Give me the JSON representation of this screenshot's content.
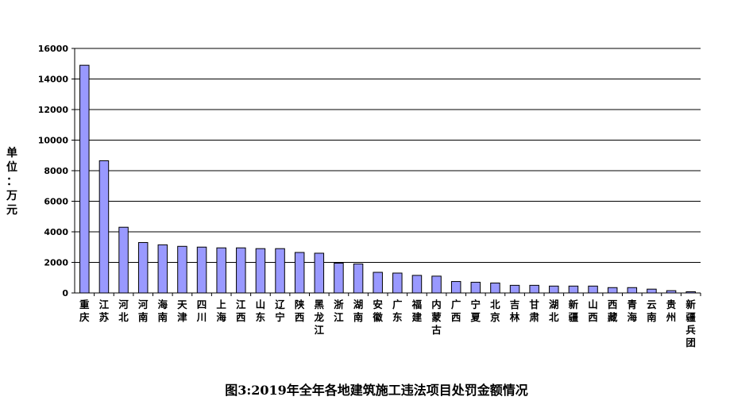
{
  "chart_data": {
    "type": "bar",
    "title": "图3:2019年全年各地建筑施工违法项目处罚金额情况",
    "xlabel": "",
    "ylabel": "单位：万元",
    "ylim": [
      0,
      16000
    ],
    "yticks": [
      0,
      2000,
      4000,
      6000,
      8000,
      10000,
      12000,
      14000,
      16000
    ],
    "grid": true,
    "bar_color": "#9999ff",
    "categories": [
      "重庆",
      "江苏",
      "河北",
      "河南",
      "海南",
      "天津",
      "四川",
      "上海",
      "江西",
      "山东",
      "辽宁",
      "陕西",
      "黑龙江",
      "浙江",
      "湖南",
      "安徽",
      "广东",
      "福建",
      "内蒙古",
      "广西",
      "宁夏",
      "北京",
      "吉林",
      "甘肃",
      "湖北",
      "新疆",
      "山西",
      "西藏",
      "青海",
      "云南",
      "贵州",
      "新疆兵团"
    ],
    "values": [
      14900,
      8650,
      4300,
      3300,
      3150,
      3050,
      3000,
      2950,
      2950,
      2900,
      2900,
      2650,
      2600,
      1950,
      1900,
      1350,
      1300,
      1150,
      1100,
      750,
      700,
      650,
      500,
      500,
      450,
      450,
      450,
      350,
      350,
      250,
      150,
      80
    ]
  }
}
